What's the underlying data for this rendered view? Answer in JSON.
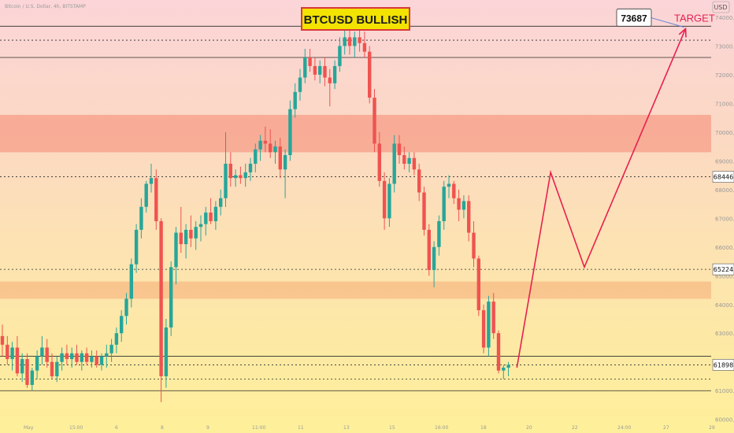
{
  "header": {
    "symbol_info": "Bitcoin / U.S. Dollar, 4h, BITSTAMP",
    "title": "BTCUSD BULLISH"
  },
  "price_axis": {
    "currency": "USD",
    "tick_labels": [
      "74000.00",
      "73000.00",
      "72000.00",
      "71000.00",
      "70000.00",
      "69000.00",
      "68000.00",
      "67000.00",
      "66000.00",
      "65000.00",
      "64000.00",
      "63000.00",
      "62000.00",
      "61000.00",
      "60000.00"
    ]
  },
  "time_axis": {
    "tick_labels": [
      "May",
      "15:00",
      "6",
      "8",
      "9",
      "11:00",
      "11",
      "13",
      "15",
      "16:00",
      "18",
      "20",
      "22",
      "24:00",
      "27",
      "29"
    ]
  },
  "colors": {
    "up": "#26a69a",
    "down": "#ef5350",
    "projection": "#e8204f",
    "target_text": "#e8204f",
    "label_bg": "#ffffff"
  },
  "chart_data": {
    "type": "candlestick",
    "title": "BTCUSD BULLISH",
    "ylabel": "USD",
    "ylim": [
      59800,
      74600
    ],
    "candles_ohlc": [
      [
        62900,
        63300,
        62200,
        62600
      ],
      [
        62600,
        62900,
        61900,
        62100
      ],
      [
        62100,
        62700,
        61700,
        62500
      ],
      [
        62500,
        62900,
        61500,
        61600
      ],
      [
        61600,
        62300,
        61300,
        62100
      ],
      [
        62100,
        62300,
        61100,
        61200
      ],
      [
        61200,
        61800,
        61000,
        61700
      ],
      [
        61700,
        62400,
        61400,
        62200
      ],
      [
        62200,
        62900,
        61900,
        62500
      ],
      [
        62500,
        62800,
        61800,
        62000
      ],
      [
        62000,
        62300,
        61400,
        61500
      ],
      [
        61500,
        62200,
        61300,
        62000
      ],
      [
        62000,
        62500,
        61700,
        62300
      ],
      [
        62300,
        62600,
        61900,
        62100
      ],
      [
        62100,
        62500,
        61800,
        62300
      ],
      [
        62300,
        62600,
        61900,
        62000
      ],
      [
        62000,
        62400,
        61700,
        62300
      ],
      [
        62300,
        62500,
        61900,
        62000
      ],
      [
        62000,
        62400,
        61800,
        62200
      ],
      [
        62200,
        62400,
        61800,
        61900
      ],
      [
        61900,
        62300,
        61700,
        62200
      ],
      [
        62200,
        62600,
        61800,
        62300
      ],
      [
        62300,
        62800,
        62000,
        62600
      ],
      [
        62600,
        63200,
        62300,
        63000
      ],
      [
        63000,
        63800,
        62700,
        63600
      ],
      [
        63600,
        64400,
        63300,
        64200
      ],
      [
        64200,
        65600,
        63900,
        65400
      ],
      [
        65400,
        66800,
        65100,
        66600
      ],
      [
        66600,
        67700,
        66300,
        67400
      ],
      [
        67400,
        68300,
        67200,
        68200
      ],
      [
        68200,
        68900,
        67900,
        68400
      ],
      [
        68400,
        68700,
        66600,
        66900
      ],
      [
        66900,
        67000,
        60600,
        61500
      ],
      [
        61500,
        63500,
        61100,
        63200
      ],
      [
        63200,
        65500,
        62900,
        65300
      ],
      [
        65300,
        66700,
        64700,
        66500
      ],
      [
        66500,
        67400,
        65800,
        66100
      ],
      [
        66100,
        66800,
        65600,
        66600
      ],
      [
        66600,
        67100,
        66000,
        66300
      ],
      [
        66300,
        66900,
        65900,
        66700
      ],
      [
        66700,
        67100,
        66200,
        66800
      ],
      [
        66800,
        67400,
        66400,
        67200
      ],
      [
        67200,
        67700,
        66800,
        66900
      ],
      [
        66900,
        67600,
        66600,
        67400
      ],
      [
        67400,
        68000,
        67100,
        67700
      ],
      [
        67700,
        70000,
        67400,
        68900
      ],
      [
        68900,
        69300,
        68100,
        68400
      ],
      [
        68400,
        68700,
        68100,
        68500
      ],
      [
        68500,
        68800,
        68200,
        68400
      ],
      [
        68400,
        68900,
        68100,
        68600
      ],
      [
        68600,
        69100,
        68300,
        68900
      ],
      [
        68900,
        69600,
        68600,
        69400
      ],
      [
        69400,
        69900,
        69000,
        69700
      ],
      [
        69700,
        70200,
        69300,
        69600
      ],
      [
        69600,
        70100,
        69100,
        69300
      ],
      [
        69300,
        69700,
        68900,
        69500
      ],
      [
        69500,
        69800,
        68400,
        68700
      ],
      [
        68700,
        69400,
        67700,
        69200
      ],
      [
        69200,
        71100,
        69000,
        70800
      ],
      [
        70800,
        71700,
        70500,
        71400
      ],
      [
        71400,
        72200,
        71100,
        71900
      ],
      [
        71900,
        72900,
        71700,
        72600
      ],
      [
        72600,
        72900,
        72100,
        72300
      ],
      [
        72300,
        72600,
        71800,
        72000
      ],
      [
        72000,
        72500,
        71700,
        72300
      ],
      [
        72300,
        72600,
        71600,
        71900
      ],
      [
        71900,
        72200,
        70900,
        71700
      ],
      [
        71700,
        72500,
        71500,
        72300
      ],
      [
        72300,
        73300,
        72100,
        73000
      ],
      [
        73000,
        73600,
        72700,
        73300
      ],
      [
        73300,
        73600,
        72700,
        73000
      ],
      [
        73000,
        73500,
        72600,
        73300
      ],
      [
        73300,
        73700,
        72800,
        73100
      ],
      [
        73100,
        73500,
        72600,
        72800
      ],
      [
        72800,
        73000,
        71000,
        71200
      ],
      [
        71200,
        71500,
        69300,
        69600
      ],
      [
        69600,
        70000,
        68100,
        68300
      ],
      [
        68300,
        68600,
        66600,
        67000
      ],
      [
        67000,
        68400,
        66700,
        68200
      ],
      [
        68200,
        69900,
        67900,
        69600
      ],
      [
        69600,
        69900,
        68900,
        69200
      ],
      [
        69200,
        69500,
        68700,
        68900
      ],
      [
        68900,
        69300,
        68600,
        69100
      ],
      [
        69100,
        69300,
        68500,
        68700
      ],
      [
        68700,
        68900,
        67600,
        67900
      ],
      [
        67900,
        68100,
        66400,
        66600
      ],
      [
        66600,
        66800,
        65000,
        65200
      ],
      [
        65200,
        66200,
        64600,
        66000
      ],
      [
        66000,
        67100,
        65700,
        66900
      ],
      [
        66900,
        68300,
        66600,
        68100
      ],
      [
        68100,
        68500,
        67700,
        68200
      ],
      [
        68200,
        68300,
        67500,
        67700
      ],
      [
        67700,
        68000,
        66900,
        67300
      ],
      [
        67300,
        67800,
        67000,
        67600
      ],
      [
        67600,
        67800,
        66200,
        66500
      ],
      [
        66500,
        66900,
        65300,
        65600
      ],
      [
        65600,
        65700,
        63600,
        63800
      ],
      [
        63800,
        64000,
        62300,
        62500
      ],
      [
        62500,
        64300,
        62200,
        64100
      ],
      [
        64100,
        64400,
        62800,
        63000
      ],
      [
        63000,
        63100,
        61600,
        61700
      ],
      [
        61700,
        61900,
        61400,
        61800
      ],
      [
        61800,
        62000,
        61500,
        61900
      ]
    ],
    "horizontal_levels": [
      {
        "price": 73687,
        "style": "solid",
        "label": "73687"
      },
      {
        "price": 73200,
        "style": "dotted"
      },
      {
        "price": 72600,
        "style": "solid"
      },
      {
        "price": 68446,
        "style": "dotted",
        "label": "68446"
      },
      {
        "price": 65224,
        "style": "dotted",
        "label": "65224"
      },
      {
        "price": 62200,
        "style": "solid"
      },
      {
        "price": 61898,
        "style": "dotted",
        "label": "61898"
      },
      {
        "price": 61400,
        "style": "dotted"
      },
      {
        "price": 61000,
        "style": "solid"
      }
    ],
    "zones": [
      {
        "from": 69300,
        "to": 70600,
        "color": "#f7a48f"
      },
      {
        "from": 64200,
        "to": 64800,
        "color": "#f8c08a"
      }
    ],
    "projection_path": [
      [
        61800,
        1
      ],
      [
        68600,
        5
      ],
      [
        65300,
        9
      ],
      [
        73600,
        21
      ]
    ],
    "target_label": "TARGET",
    "target_value": "73687"
  }
}
